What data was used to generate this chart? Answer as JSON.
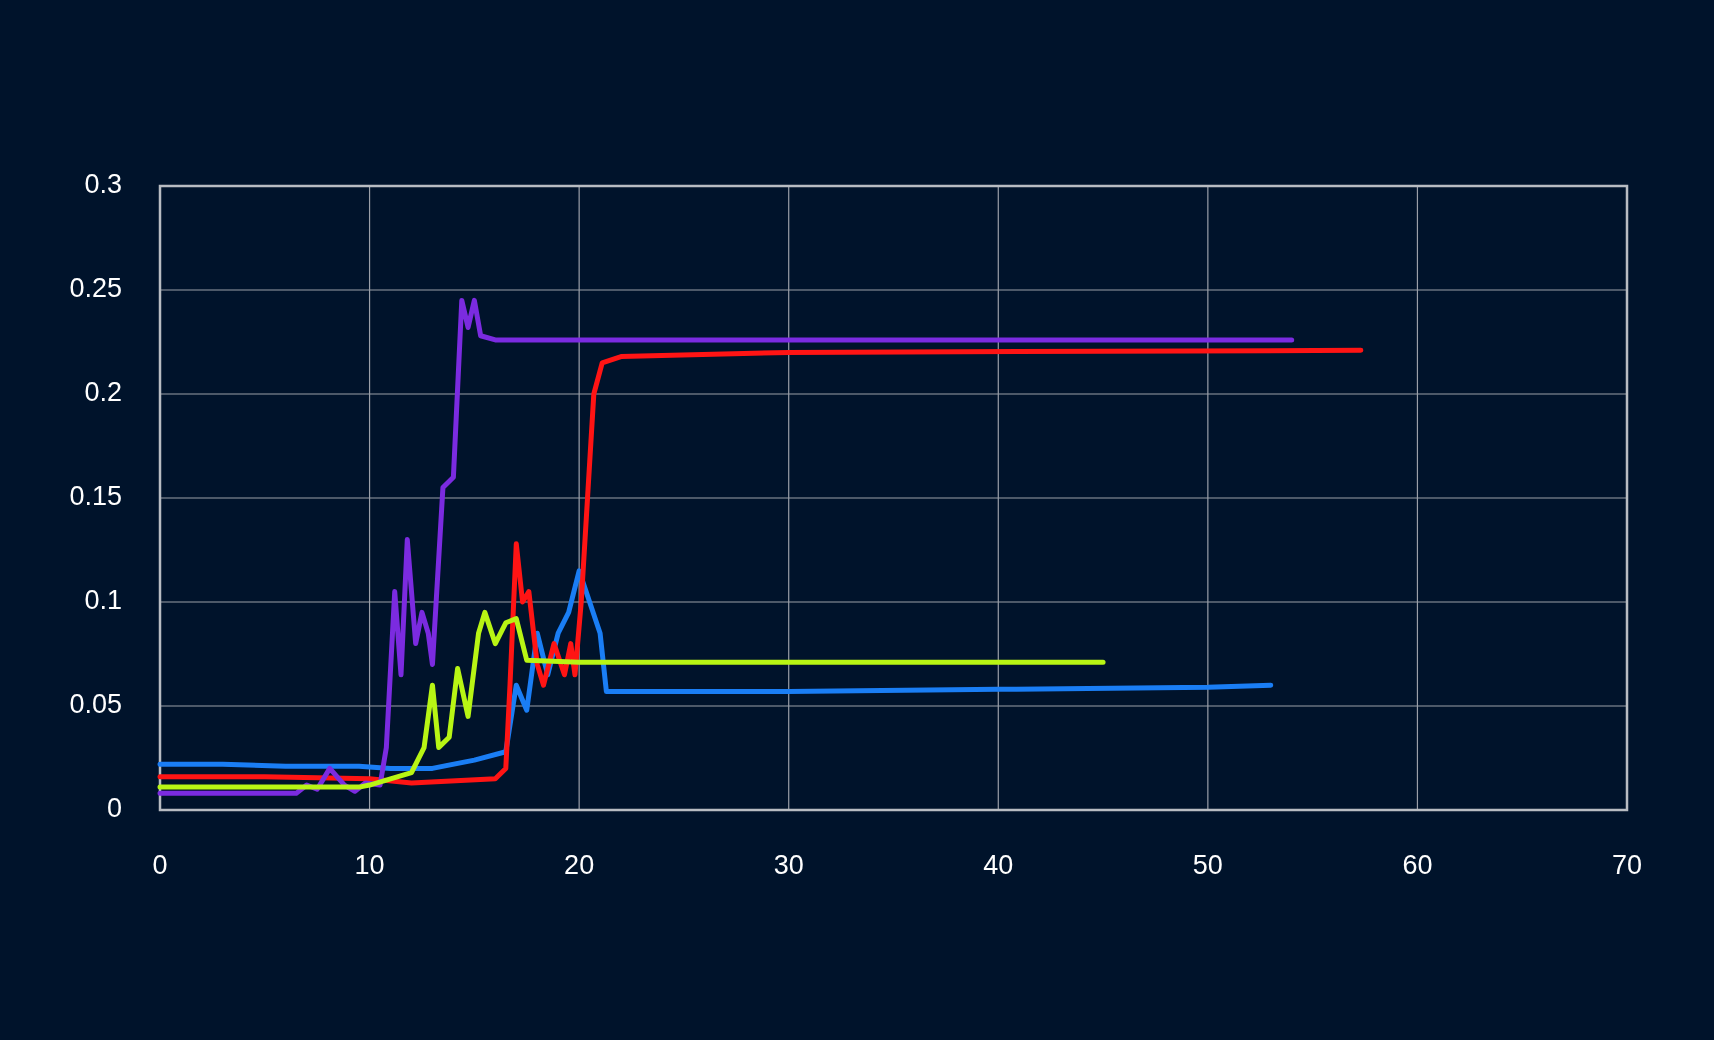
{
  "chart_data": {
    "type": "line",
    "xlim": [
      0,
      70
    ],
    "xticks": [
      0,
      10,
      20,
      30,
      40,
      50,
      60,
      70
    ],
    "ylim": [
      0,
      0.3
    ],
    "yticks": [
      0,
      0.05,
      0.1,
      0.15,
      0.2,
      0.25,
      0.3
    ],
    "grid": true,
    "marker": "none",
    "line_style": "solid",
    "series": [
      {
        "color": "#1a7ef5",
        "x": [
          0,
          3,
          6,
          9.5,
          11,
          13,
          15,
          16.5,
          17,
          17.5,
          18,
          18.5,
          19,
          19.5,
          20,
          20.5,
          21,
          21.3,
          25,
          30,
          40,
          50,
          53
        ],
        "values": [
          0.022,
          0.022,
          0.021,
          0.021,
          0.02,
          0.02,
          0.024,
          0.028,
          0.06,
          0.048,
          0.085,
          0.065,
          0.085,
          0.095,
          0.115,
          0.1,
          0.085,
          0.057,
          0.057,
          0.057,
          0.058,
          0.059,
          0.06
        ]
      },
      {
        "color": "#ff1414",
        "x": [
          0,
          5,
          10,
          12,
          16,
          16.5,
          16.7,
          17,
          17.3,
          17.6,
          18,
          18.3,
          18.8,
          19.3,
          19.6,
          19.8,
          20.1,
          20.4,
          20.7,
          21.1,
          22,
          30,
          57.3
        ],
        "values": [
          0.016,
          0.016,
          0.015,
          0.013,
          0.015,
          0.02,
          0.06,
          0.128,
          0.1,
          0.105,
          0.07,
          0.06,
          0.08,
          0.065,
          0.08,
          0.065,
          0.1,
          0.15,
          0.2,
          0.215,
          0.218,
          0.22,
          0.221
        ]
      },
      {
        "color": "#7b2be0",
        "x": [
          0,
          6.5,
          7,
          7.5,
          8.1,
          8.8,
          9.3,
          9.8,
          10.5,
          10.8,
          11.2,
          11.5,
          11.8,
          12.2,
          12.5,
          12.8,
          13,
          13.5,
          14,
          14.4,
          14.7,
          15,
          15.3,
          16,
          30,
          54
        ],
        "values": [
          0.008,
          0.008,
          0.012,
          0.01,
          0.02,
          0.012,
          0.009,
          0.013,
          0.012,
          0.03,
          0.105,
          0.065,
          0.13,
          0.08,
          0.095,
          0.085,
          0.07,
          0.155,
          0.16,
          0.245,
          0.232,
          0.245,
          0.228,
          0.226,
          0.226,
          0.226
        ]
      },
      {
        "color": "#b8f514",
        "x": [
          0,
          5,
          9.5,
          10,
          11,
          12,
          12.6,
          13,
          13.3,
          13.8,
          14.2,
          14.7,
          15.2,
          15.5,
          16,
          16.5,
          17,
          17.5,
          20,
          45
        ],
        "values": [
          0.011,
          0.011,
          0.011,
          0.012,
          0.015,
          0.018,
          0.03,
          0.06,
          0.03,
          0.035,
          0.068,
          0.045,
          0.085,
          0.095,
          0.08,
          0.09,
          0.092,
          0.072,
          0.071,
          0.071
        ]
      }
    ]
  }
}
